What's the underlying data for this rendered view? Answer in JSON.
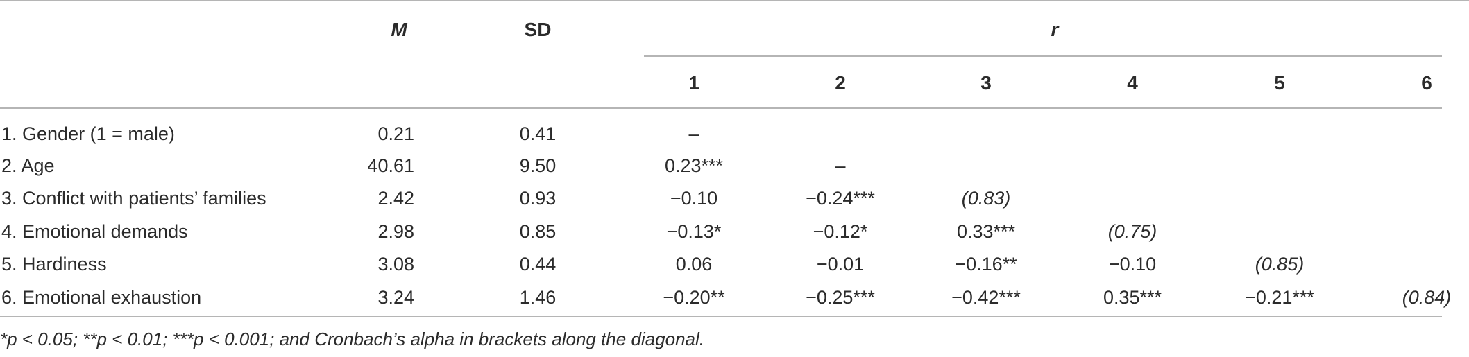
{
  "header": {
    "mean": "M",
    "sd": "SD",
    "r": "r",
    "corr_cols": [
      "1",
      "2",
      "3",
      "4",
      "5",
      "6"
    ]
  },
  "rows": [
    {
      "label": "1. Gender (1 = male)",
      "m": "0.21",
      "sd": "0.41",
      "r": [
        "–",
        "",
        "",
        "",
        "",
        ""
      ]
    },
    {
      "label": "2. Age",
      "m": "40.61",
      "sd": "9.50",
      "r": [
        "0.23***",
        "–",
        "",
        "",
        "",
        ""
      ]
    },
    {
      "label": "3. Conflict with patients’ families",
      "m": "2.42",
      "sd": "0.93",
      "r": [
        "−0.10",
        "−0.24***",
        "(0.83)",
        "",
        "",
        ""
      ]
    },
    {
      "label": "4. Emotional demands",
      "m": "2.98",
      "sd": "0.85",
      "r": [
        "−0.13*",
        "−0.12*",
        "0.33***",
        "(0.75)",
        "",
        ""
      ]
    },
    {
      "label": "5. Hardiness",
      "m": "3.08",
      "sd": "0.44",
      "r": [
        "0.06",
        "−0.01",
        "−0.16**",
        "−0.10",
        "(0.85)",
        ""
      ]
    },
    {
      "label": "6. Emotional exhaustion",
      "m": "3.24",
      "sd": "1.46",
      "r": [
        "−0.20**",
        "−0.25***",
        "−0.42***",
        "0.35***",
        "−0.21***",
        "(0.84)"
      ]
    }
  ],
  "footnote": "*p < 0.05; **p < 0.01; ***p < 0.001; and Cronbach’s alpha in brackets along the diagonal."
}
